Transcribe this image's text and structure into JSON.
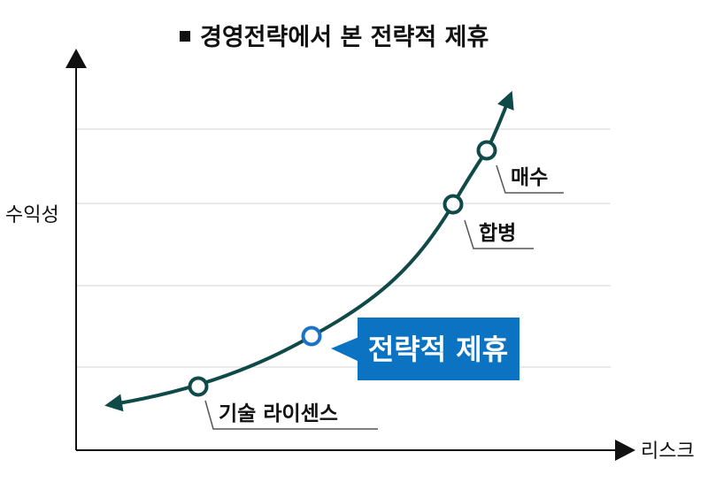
{
  "title": "경영전략에서 본 전략적 제휴",
  "axes": {
    "y_label": "수익성",
    "x_label": "리스크"
  },
  "stages": [
    {
      "label": "기술 라이센스"
    },
    {
      "label": "전략적 제휴",
      "highlighted": true
    },
    {
      "label": "합병"
    },
    {
      "label": "매수"
    }
  ],
  "colors": {
    "curve": "#0f4a48",
    "highlight_box": "#0b73c2",
    "axis": "#111111",
    "gridline": "#d4d4d4"
  }
}
